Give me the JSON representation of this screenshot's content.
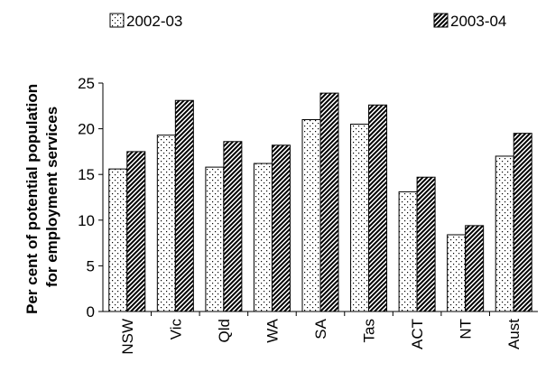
{
  "chart_data": {
    "type": "bar",
    "categories": [
      "NSW",
      "Vic",
      "Qld",
      "WA",
      "SA",
      "Tas",
      "ACT",
      "NT",
      "Aust"
    ],
    "series": [
      {
        "name": "2002-03",
        "values": [
          15.6,
          19.3,
          15.8,
          16.2,
          21.0,
          20.5,
          13.1,
          8.4,
          17.0
        ],
        "pattern": "dots"
      },
      {
        "name": "2003-04",
        "values": [
          17.5,
          23.1,
          18.6,
          18.2,
          23.9,
          22.6,
          14.7,
          9.4,
          19.5
        ],
        "pattern": "diagonal-hatch"
      }
    ],
    "title": "",
    "xlabel": "",
    "ylabel_lines": [
      "Per cent of potential population",
      "for employment services"
    ],
    "ylim": [
      0,
      25
    ],
    "yticks": [
      "0",
      "5",
      "10",
      "15",
      "20",
      "25"
    ],
    "grid": false,
    "legend_position": "top"
  }
}
